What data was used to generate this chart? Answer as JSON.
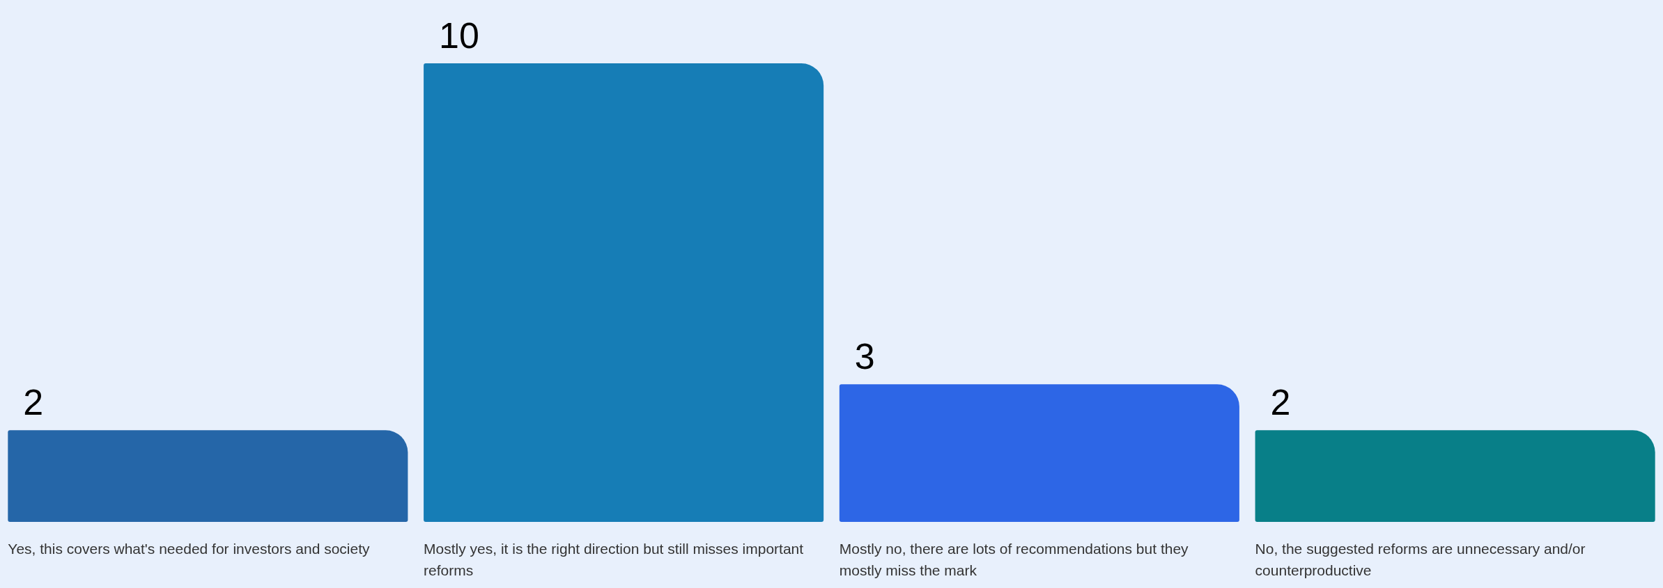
{
  "chart_data": {
    "type": "bar",
    "categories": [
      "Yes, this covers what's needed for investors and society",
      "Mostly yes, it is the right direction but still misses important reforms",
      "Mostly no, there are lots of recommendations but they mostly miss the mark",
      "No, the suggested reforms are unnecessary and/or counterproductive"
    ],
    "values": [
      2,
      10,
      3,
      2
    ],
    "colors": [
      "#2566a8",
      "#167db6",
      "#2d66e6",
      "#087f88"
    ],
    "data_labels": true
  }
}
